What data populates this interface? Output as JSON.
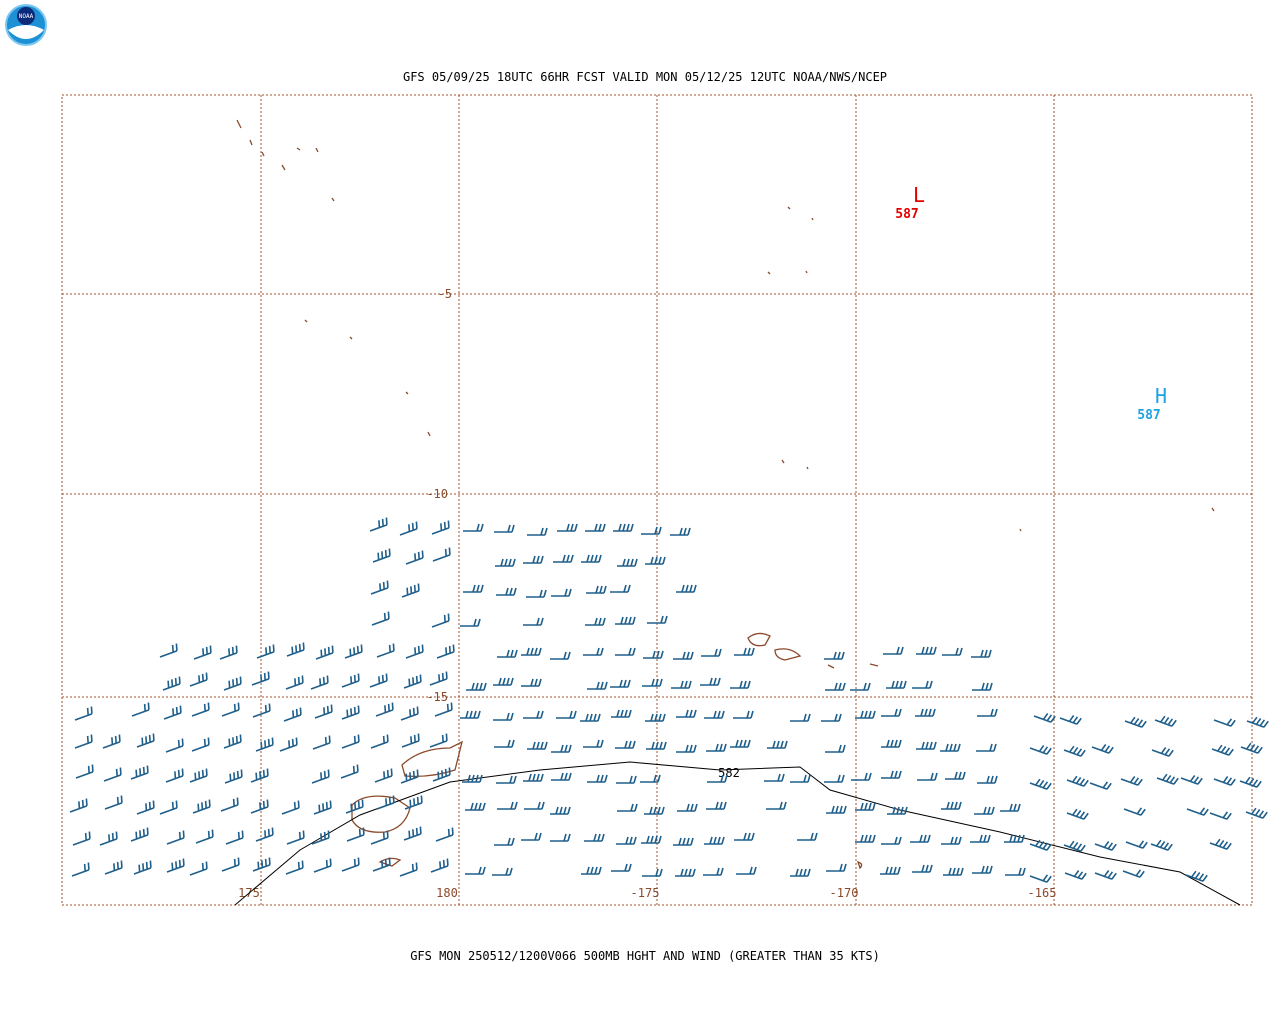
{
  "header": {
    "title": "GFS 05/09/25 18UTC 66HR FCST VALID MON 05/12/25 12UTC NOAA/NWS/NCEP",
    "logo": "NOAA"
  },
  "map": {
    "lat_labels": [
      "-5",
      "-10",
      "-15"
    ],
    "lon_labels": [
      "175",
      "180",
      "-175",
      "-170",
      "-165"
    ],
    "low": {
      "symbol": "L",
      "label": "587"
    },
    "high": {
      "symbol": "H",
      "label": "587"
    },
    "contour_label": "582"
  },
  "footer": {
    "caption": "GFS MON 250512/1200V066 500MB HGHT AND WIND (GREATER THAN 35 KTS)"
  }
}
